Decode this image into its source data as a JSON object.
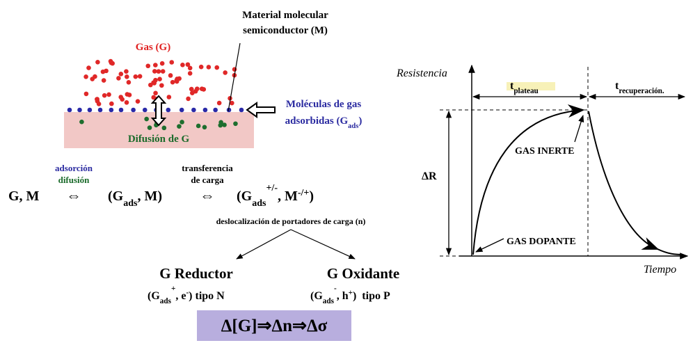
{
  "material_label": [
    "Material molecular",
    "semiconductor (M)"
  ],
  "gas_label": "Gas (G)",
  "adsorbed_label": [
    "Moléculas de gas",
    "adsorbidas (G",
    "ads",
    ")"
  ],
  "diffusion_label": "Difusión de G",
  "reaction": {
    "reactants": "G, M",
    "step1": [
      "adsorción",
      "difusión"
    ],
    "equiv": "⇔",
    "intermediate": [
      "(G",
      "ads",
      ", M)"
    ],
    "step2": [
      "transferencia",
      "de carga"
    ],
    "product": [
      "(G",
      "ads",
      "+/-",
      ", M",
      "-/+",
      ")"
    ]
  },
  "delocalization": "deslocalización de portadores de carga (n)",
  "reductor": {
    "title": "G Reductor",
    "detail": [
      "(G",
      "ads",
      "+",
      ", e",
      "-",
      ") tipo N"
    ]
  },
  "oxidante": {
    "title": "G Oxidante",
    "detail": [
      "(G",
      "ads",
      "-",
      ", h",
      "+",
      ")  tipo P"
    ]
  },
  "summary": "Δ[G]⇒Δn⇒Δσ",
  "graph": {
    "y_label": "Resistencia",
    "x_label": "Tiempo",
    "plateau": [
      "t",
      "plateau"
    ],
    "recovery": [
      "t",
      "recuperación."
    ],
    "delta_r": "ΔR",
    "inert": "GAS INERTE",
    "dopant": "GAS DOPANTE"
  }
}
